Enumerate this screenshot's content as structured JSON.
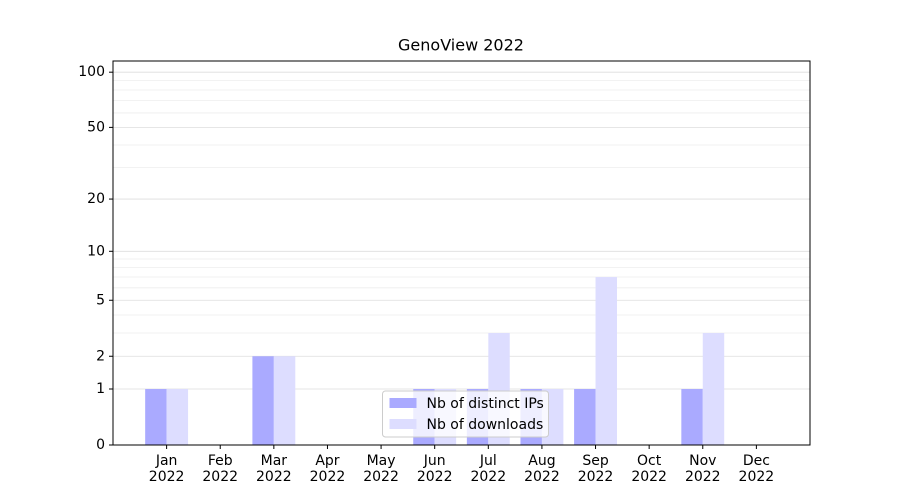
{
  "chart_data": {
    "type": "bar",
    "title": "GenoView 2022",
    "categories": [
      "Jan\n2022",
      "Feb\n2022",
      "Mar\n2022",
      "Apr\n2022",
      "May\n2022",
      "Jun\n2022",
      "Jul\n2022",
      "Aug\n2022",
      "Sep\n2022",
      "Oct\n2022",
      "Nov\n2022",
      "Dec\n2022"
    ],
    "series": [
      {
        "name": "Nb of distinct IPs",
        "color": "#aaaaff",
        "values": [
          1,
          0,
          2,
          0,
          0,
          1,
          1,
          1,
          1,
          0,
          1,
          0
        ]
      },
      {
        "name": "Nb of downloads",
        "color": "#ddddff",
        "values": [
          1,
          0,
          2,
          0,
          0,
          1,
          3,
          1,
          7,
          0,
          3,
          0
        ]
      }
    ],
    "y_scale": "log1p",
    "ylim": [
      0,
      115
    ],
    "yticks": [
      0,
      1,
      2,
      5,
      10,
      20,
      50,
      100
    ],
    "minor_yticks": [
      3,
      4,
      6,
      7,
      8,
      9,
      30,
      40,
      60,
      70,
      80,
      90
    ],
    "grid": true,
    "legend_position": "lower center"
  }
}
